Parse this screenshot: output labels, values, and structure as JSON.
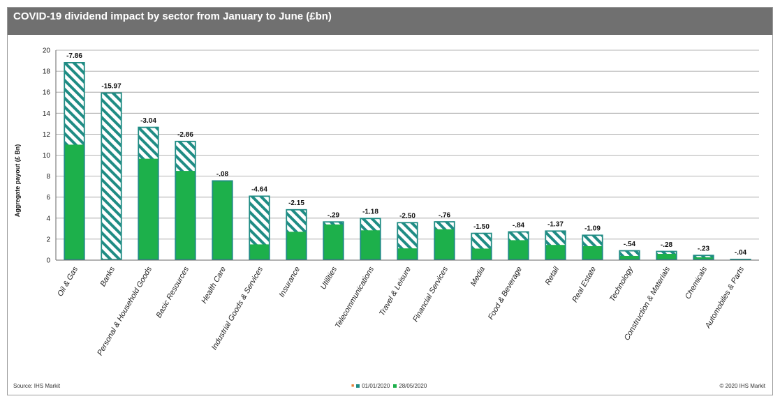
{
  "title": "COVID-19 dividend impact by sector from January to June (£bn)",
  "source": "Source: IHS Markit",
  "copyright": "© 2020 IHS Markit",
  "colors": {
    "title_bg": "#707070",
    "green": "#1db04b",
    "teal": "#1f8c84",
    "hatch_bg": "#ffffff",
    "legend_orange": "#e8803a"
  },
  "legend": {
    "marker": "■",
    "entries": [
      "01/01/2020",
      "28/05/2020"
    ]
  },
  "chart_data": {
    "type": "bar",
    "title": "COVID-19 dividend impact by sector from January to June (£bn)",
    "xlabel": "",
    "ylabel": "Aggregate payout (£ Bn)",
    "ylim": [
      0,
      20
    ],
    "yticks": [
      0,
      2,
      4,
      6,
      8,
      10,
      12,
      14,
      16,
      18,
      20
    ],
    "grid": true,
    "legend_position": "bottom-center",
    "categories": [
      "Oil & Gas",
      "Banks",
      "Personal & Household Goods",
      "Basic Resources",
      "Health Care",
      "Industrial Goods & Services",
      "Insurance",
      "Utilities",
      "Telecommunications",
      "Travel & Leisure",
      "Financial Services",
      "Media",
      "Food & Beverage",
      "Retail",
      "Real Estate",
      "Technology",
      "Construction & Materials",
      "Chemicals",
      "Automobiles & Parts"
    ],
    "series": [
      {
        "name": "01/01/2020",
        "values": [
          18.86,
          15.97,
          12.7,
          11.36,
          7.6,
          6.14,
          4.85,
          3.69,
          4.02,
          3.62,
          3.7,
          2.6,
          2.74,
          2.82,
          2.42,
          0.94,
          0.88,
          0.5,
          0.12
        ]
      },
      {
        "name": "28/05/2020",
        "values": [
          11.0,
          0.0,
          9.66,
          8.5,
          7.52,
          1.5,
          2.7,
          3.4,
          2.84,
          1.12,
          2.94,
          1.1,
          1.9,
          1.45,
          1.33,
          0.4,
          0.6,
          0.27,
          0.08
        ]
      }
    ],
    "data_labels": [
      "-7.86",
      "-15.97",
      "-3.04",
      "-2.86",
      "-.08",
      "-4.64",
      "-2.15",
      "-.29",
      "-1.18",
      "-2.50",
      "-.76",
      "-1.50",
      "-.84",
      "-1.37",
      "-1.09",
      "-.54",
      "-.28",
      "-.23",
      "-.04"
    ]
  }
}
